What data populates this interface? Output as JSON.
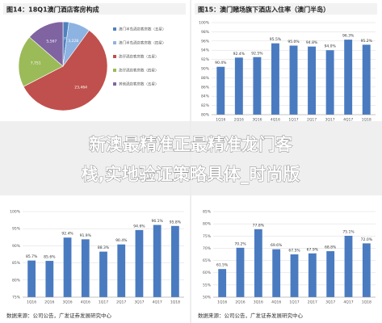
{
  "chart_data": [
    {
      "type": "pie",
      "title": "图14：18Q1澳门酒店客房构成",
      "categories": [
        "澳门半岛酒店客房数（五星）",
        "澳门半岛酒店客房数（四星）",
        "氹仔酒店客房数（五星）",
        "氹仔酒店客房数（四星）",
        "其他酒店客房数（五星）"
      ],
      "values": [
        873,
        3228,
        23464,
        7751,
        5567
      ],
      "value_labels": [
        "873",
        "3,228",
        "23,464",
        "7,751",
        "5,567"
      ],
      "colors": [
        "#4f81bd",
        "#8db3e2",
        "#c0504d",
        "#9bbb59",
        "#8064a2"
      ]
    },
    {
      "type": "bar",
      "title": "图15：澳门赌场旗下酒店入住率（澳门半岛）",
      "color": "#4a7bc0",
      "grid": true,
      "categories": [
        "1Q16",
        "2Q16",
        "3Q16",
        "4Q16",
        "1Q17",
        "2Q17",
        "3Q17",
        "4Q17",
        "1Q18"
      ],
      "values": [
        90.4,
        92.4,
        92.5,
        95.5,
        95.0,
        94.8,
        94.0,
        96.3,
        95.2
      ],
      "value_labels": [
        "90.4%",
        "92.4%",
        "92.5%",
        "95.5%",
        "95.0%",
        "94.8%",
        "94.0%",
        "96.3%",
        "95.2%"
      ],
      "ylim": [
        80,
        100
      ],
      "yticks": [
        {
          "value": 80,
          "label": "80%"
        },
        {
          "value": 82,
          "label": "82%"
        },
        {
          "value": 84,
          "label": "84%"
        },
        {
          "value": 86,
          "label": "86%"
        },
        {
          "value": 88,
          "label": "88%"
        },
        {
          "value": 90,
          "label": "90%"
        },
        {
          "value": 92,
          "label": "92%"
        },
        {
          "value": 94,
          "label": "94%"
        },
        {
          "value": 96,
          "label": "96%"
        },
        {
          "value": 98,
          "label": "98%"
        },
        {
          "value": 100,
          "label": "100%"
        }
      ]
    },
    {
      "type": "bar",
      "color": "#4a7bc0",
      "grid": true,
      "source": "数据来源：公司公告，广发证券发展研究中心",
      "categories": [
        "1Q16",
        "2Q16",
        "3Q16",
        "4Q16",
        "1Q17",
        "2Q17",
        "3Q17",
        "4Q17",
        "1Q18"
      ],
      "values": [
        85.7,
        85.6,
        92.4,
        91.9,
        88.3,
        90.4,
        94.6,
        96.1,
        95.8
      ],
      "value_labels": [
        "85.7%",
        "85.6%",
        "92.4%",
        "91.9%",
        "88.3%",
        "90.4%",
        "94.6%",
        "96.1%",
        "95.8%"
      ],
      "ylim": [
        75,
        100
      ],
      "yticks": [
        {
          "value": 75,
          "label": "75%"
        },
        {
          "value": 80,
          "label": "80%"
        },
        {
          "value": 85,
          "label": "85%"
        },
        {
          "value": 90,
          "label": "90%"
        },
        {
          "value": 95,
          "label": "95%"
        },
        {
          "value": 100,
          "label": "100%"
        }
      ]
    },
    {
      "type": "bar",
      "color": "#4a7bc0",
      "grid": true,
      "source": "数据来源：公司公告，广发证券发展研究中心",
      "categories": [
        "1Q16",
        "2Q16",
        "3Q16",
        "4Q16",
        "1Q17",
        "2Q17",
        "3Q17",
        "4Q17",
        "1Q18"
      ],
      "values": [
        61.5,
        70.2,
        77.8,
        69.6,
        67.5,
        67.9,
        68.8,
        75.1,
        72.0
      ],
      "value_labels": [
        "61.5%",
        "70.2%",
        "77.8%",
        "69.6%",
        "67.5%",
        "67.9%",
        "68.8%",
        "75.1%",
        "72.0%"
      ],
      "ylim": [
        50,
        85
      ],
      "yticks": [
        {
          "value": 50,
          "label": "50%"
        },
        {
          "value": 55,
          "label": "55%"
        },
        {
          "value": 60,
          "label": "60%"
        },
        {
          "value": 65,
          "label": "65%"
        },
        {
          "value": 70,
          "label": "70%"
        },
        {
          "value": 75,
          "label": "75%"
        },
        {
          "value": 80,
          "label": "80%"
        },
        {
          "value": 85,
          "label": "85%"
        }
      ]
    }
  ],
  "overlay": {
    "lines": [
      "新澳最精准正最精准龙门客",
      "栈,实地验证策略具体_时尚版"
    ]
  }
}
